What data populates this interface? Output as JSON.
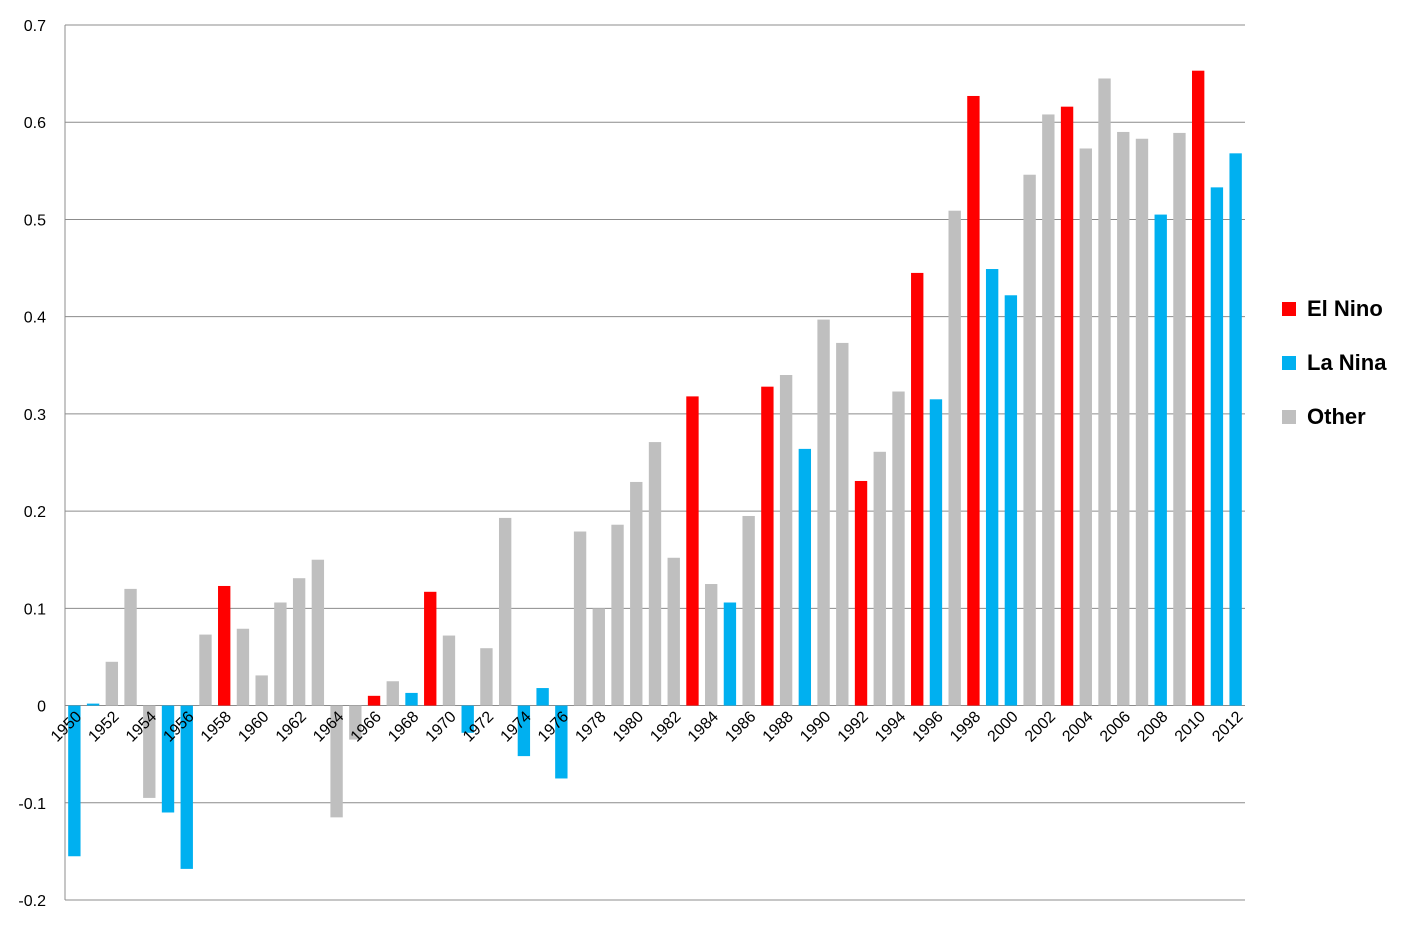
{
  "chart_data": {
    "type": "bar",
    "title": "",
    "xlabel": "",
    "ylabel": "",
    "ylim": [
      -0.2,
      0.7
    ],
    "yticks": [
      "-0.2",
      "-0.1",
      "0",
      "0.1",
      "0.2",
      "0.3",
      "0.4",
      "0.5",
      "0.6",
      "0.7"
    ],
    "grid": true,
    "legend_position": "right",
    "categories": [
      "1950",
      "1951",
      "1952",
      "1953",
      "1954",
      "1955",
      "1956",
      "1957",
      "1958",
      "1959",
      "1960",
      "1961",
      "1962",
      "1963",
      "1964",
      "1965",
      "1966",
      "1967",
      "1968",
      "1969",
      "1970",
      "1971",
      "1972",
      "1973",
      "1974",
      "1975",
      "1976",
      "1977",
      "1978",
      "1979",
      "1980",
      "1981",
      "1982",
      "1983",
      "1984",
      "1985",
      "1986",
      "1987",
      "1988",
      "1989",
      "1990",
      "1991",
      "1992",
      "1993",
      "1994",
      "1995",
      "1996",
      "1997",
      "1998",
      "1999",
      "2000",
      "2001",
      "2002",
      "2003",
      "2004",
      "2005",
      "2006",
      "2007",
      "2008",
      "2009",
      "2010",
      "2011",
      "2012"
    ],
    "xtick_labels": [
      "1950",
      "1952",
      "1954",
      "1956",
      "1958",
      "1960",
      "1962",
      "1964",
      "1966",
      "1968",
      "1970",
      "1972",
      "1974",
      "1976",
      "1978",
      "1980",
      "1982",
      "1984",
      "1986",
      "1988",
      "1990",
      "1992",
      "1994",
      "1996",
      "1998",
      "2000",
      "2002",
      "2004",
      "2006",
      "2008",
      "2010",
      "2012"
    ],
    "values": [
      -0.155,
      0.002,
      0.045,
      0.12,
      -0.095,
      -0.11,
      -0.168,
      0.073,
      0.123,
      0.079,
      0.031,
      0.106,
      0.131,
      0.15,
      -0.115,
      -0.035,
      0.01,
      0.025,
      0.013,
      0.117,
      0.072,
      -0.028,
      0.059,
      0.193,
      -0.052,
      0.018,
      -0.075,
      0.179,
      0.1,
      0.186,
      0.23,
      0.271,
      0.152,
      0.318,
      0.125,
      0.106,
      0.195,
      0.328,
      0.34,
      0.264,
      0.397,
      0.373,
      0.231,
      0.261,
      0.323,
      0.445,
      0.315,
      0.509,
      0.627,
      0.449,
      0.422,
      0.546,
      0.608,
      0.616,
      0.573,
      0.645,
      0.59,
      0.583,
      0.505,
      0.589,
      0.653,
      0.533,
      0.568
    ],
    "enso": [
      "La Nina",
      "La Nina",
      "Other",
      "Other",
      "Other",
      "La Nina",
      "La Nina",
      "Other",
      "El Nino",
      "Other",
      "Other",
      "Other",
      "Other",
      "Other",
      "Other",
      "Other",
      "El Nino",
      "Other",
      "La Nina",
      "El Nino",
      "Other",
      "La Nina",
      "Other",
      "Other",
      "La Nina",
      "La Nina",
      "La Nina",
      "Other",
      "Other",
      "Other",
      "Other",
      "Other",
      "Other",
      "El Nino",
      "Other",
      "La Nina",
      "Other",
      "El Nino",
      "Other",
      "La Nina",
      "Other",
      "Other",
      "El Nino",
      "Other",
      "Other",
      "El Nino",
      "La Nina",
      "Other",
      "El Nino",
      "La Nina",
      "La Nina",
      "Other",
      "Other",
      "El Nino",
      "Other",
      "Other",
      "Other",
      "Other",
      "La Nina",
      "Other",
      "El Nino",
      "La Nina",
      "La Nina"
    ],
    "legend": [
      {
        "name": "El Nino",
        "color": "#ff0000"
      },
      {
        "name": "La Nina",
        "color": "#00b0f0"
      },
      {
        "name": "Other",
        "color": "#bfbfbf"
      }
    ]
  }
}
